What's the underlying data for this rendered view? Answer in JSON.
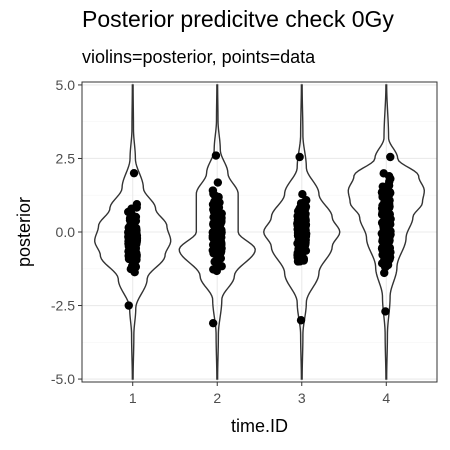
{
  "chart_data": {
    "type": "violin",
    "title": "Posterior predicitve check 0Gy",
    "subtitle": "violins=posterior, points=data",
    "xlabel": "time.ID",
    "ylabel": "posterior",
    "categories": [
      "1",
      "2",
      "3",
      "4"
    ],
    "ylim": [
      -5.1,
      5.1
    ],
    "yticks": [
      -5.0,
      -2.5,
      0.0,
      2.5,
      5.0
    ],
    "ytick_labels": [
      "-5.0",
      "-2.5",
      "0.0",
      "2.5",
      "5.0"
    ],
    "grid": true,
    "theme": "bw",
    "colors": {
      "violin": "#333333",
      "points": "#000000",
      "grid_major": "#ebebeb",
      "grid_minor": "#f5f5f5",
      "panel_border": "#333333"
    },
    "violins": [
      {
        "category": "1",
        "range": [
          -5.0,
          5.0
        ],
        "density_profile": [
          [
            -5.0,
            0.01
          ],
          [
            -3.5,
            0.03
          ],
          [
            -2.6,
            0.08
          ],
          [
            -1.6,
            0.38
          ],
          [
            -0.8,
            0.85
          ],
          [
            -0.3,
            1.0
          ],
          [
            0.2,
            0.9
          ],
          [
            0.8,
            0.6
          ],
          [
            1.5,
            0.28
          ],
          [
            2.5,
            0.07
          ],
          [
            3.5,
            0.02
          ],
          [
            5.0,
            0.01
          ]
        ]
      },
      {
        "category": "2",
        "range": [
          -5.0,
          5.0
        ],
        "density_profile": [
          [
            -5.0,
            0.01
          ],
          [
            -3.5,
            0.03
          ],
          [
            -2.3,
            0.12
          ],
          [
            -1.5,
            0.45
          ],
          [
            -0.6,
            1.0
          ],
          [
            0.0,
            0.55
          ],
          [
            0.7,
            0.55
          ],
          [
            1.3,
            0.55
          ],
          [
            2.0,
            0.28
          ],
          [
            2.8,
            0.08
          ],
          [
            3.8,
            0.02
          ],
          [
            5.0,
            0.01
          ]
        ]
      },
      {
        "category": "3",
        "range": [
          -5.0,
          5.0
        ],
        "density_profile": [
          [
            -5.0,
            0.01
          ],
          [
            -3.5,
            0.03
          ],
          [
            -2.4,
            0.12
          ],
          [
            -1.4,
            0.45
          ],
          [
            -0.5,
            0.8
          ],
          [
            0.0,
            1.0
          ],
          [
            0.5,
            0.8
          ],
          [
            1.3,
            0.45
          ],
          [
            2.2,
            0.12
          ],
          [
            3.3,
            0.03
          ],
          [
            5.0,
            0.01
          ]
        ]
      },
      {
        "category": "4",
        "range": [
          -5.0,
          5.0
        ],
        "density_profile": [
          [
            -5.0,
            0.01
          ],
          [
            -3.5,
            0.03
          ],
          [
            -2.2,
            0.1
          ],
          [
            -1.2,
            0.28
          ],
          [
            -0.2,
            0.52
          ],
          [
            0.5,
            0.7
          ],
          [
            1.0,
            0.95
          ],
          [
            1.4,
            1.0
          ],
          [
            1.9,
            0.85
          ],
          [
            2.5,
            0.3
          ],
          [
            3.2,
            0.06
          ],
          [
            5.0,
            0.01
          ]
        ]
      }
    ],
    "points": [
      {
        "category": "1",
        "min": -2.5,
        "max": 2.0,
        "center": -0.3,
        "spread": 0.85
      },
      {
        "category": "2",
        "min": -3.1,
        "max": 2.6,
        "center": 0.0,
        "spread": 1.15
      },
      {
        "category": "3",
        "min": -3.0,
        "max": 2.55,
        "center": 0.0,
        "spread": 1.0
      },
      {
        "category": "4",
        "min": -2.7,
        "max": 2.55,
        "center": 0.3,
        "spread": 1.25
      }
    ]
  }
}
